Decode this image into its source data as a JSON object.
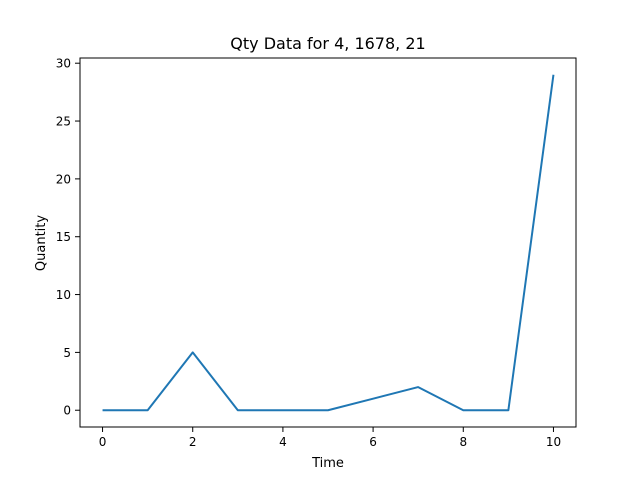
{
  "chart_data": {
    "type": "line",
    "title": "Qty Data for 4, 1678, 21",
    "xlabel": "Time",
    "ylabel": "Quantity",
    "xlim": [
      -0.5,
      10.5
    ],
    "ylim": [
      -1.45,
      30.45
    ],
    "xticks": [
      0,
      2,
      4,
      6,
      8,
      10
    ],
    "yticks": [
      0,
      5,
      10,
      15,
      20,
      25,
      30
    ],
    "grid": false,
    "series": [
      {
        "color": "#1f77b4",
        "x": [
          0,
          1,
          2,
          3,
          4,
          5,
          6,
          7,
          8,
          9,
          10
        ],
        "values": [
          0,
          0,
          5,
          0,
          0,
          0,
          1,
          2,
          0,
          0,
          29
        ]
      }
    ]
  }
}
